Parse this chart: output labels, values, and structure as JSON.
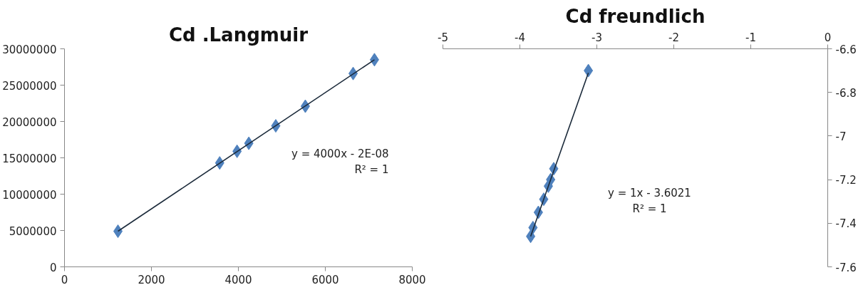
{
  "chart_data": [
    {
      "type": "scatter",
      "title": "Cd .Langmuir",
      "marker": "diamond",
      "grid": false,
      "xlim": [
        0,
        8000
      ],
      "xticks": [
        0,
        2000,
        4000,
        6000,
        8000
      ],
      "ylim": [
        0,
        30000000
      ],
      "yticks": [
        0,
        5000000,
        10000000,
        15000000,
        20000000,
        25000000,
        30000000
      ],
      "annotations": [
        "y = 4000x - 2E-08",
        "R² = 1"
      ],
      "series": [
        {
          "color": "#4f81bd",
          "x": [
            1230,
            3570,
            3970,
            4240,
            4860,
            5540,
            6640,
            7130
          ],
          "values": [
            4900000,
            14300000,
            15900000,
            17000000,
            19400000,
            22100000,
            26600000,
            28500000
          ]
        },
        {
          "type": "line",
          "marker": "none",
          "color": "#1b2a3a",
          "x": [
            1230,
            7130
          ],
          "values": [
            4900000,
            28500000
          ]
        }
      ]
    },
    {
      "type": "scatter",
      "title": "Cd freundlich",
      "marker": "diamond",
      "grid": false,
      "xlim": [
        -5,
        0
      ],
      "xticks": [
        -5,
        -4,
        -3,
        -2,
        -1,
        0
      ],
      "ylim": [
        -7.6,
        -6.6
      ],
      "yticks": [
        -7.6,
        -7.4,
        -7.2,
        -7,
        -6.8,
        -6.6
      ],
      "annotations": [
        "y = 1x - 3.6021",
        "R² = 1"
      ],
      "series": [
        {
          "color": "#4f81bd",
          "x": [
            -3.11,
            -3.56,
            -3.6,
            -3.63,
            -3.69,
            -3.76,
            -3.83,
            -3.86
          ],
          "values": [
            -6.7,
            -7.15,
            -7.2,
            -7.23,
            -7.29,
            -7.35,
            -7.42,
            -7.46
          ]
        },
        {
          "type": "line",
          "marker": "none",
          "color": "#1b2a3a",
          "x": [
            -3.11,
            -3.86
          ],
          "values": [
            -6.71,
            -7.46
          ]
        }
      ]
    }
  ]
}
